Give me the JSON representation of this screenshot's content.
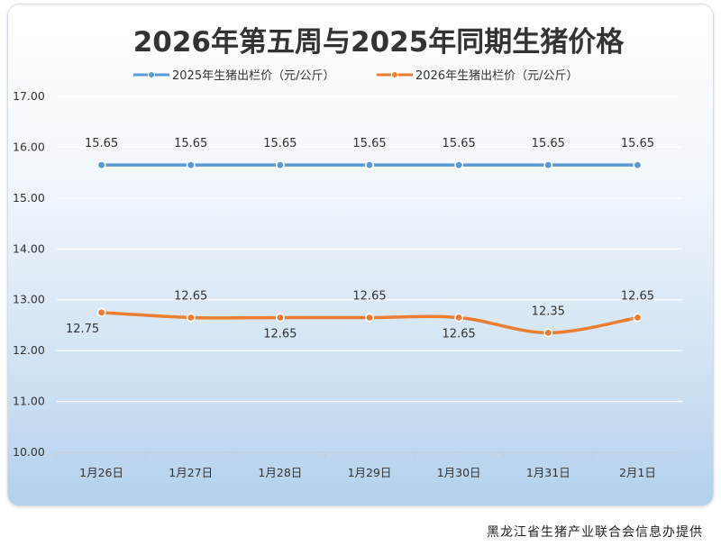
{
  "chart_data": {
    "type": "line",
    "title": "2026年第五周与2025年同期生猪价格",
    "categories": [
      "1月26日",
      "1月27日",
      "1月28日",
      "1月29日",
      "1月30日",
      "1月31日",
      "2月1日"
    ],
    "ylim": [
      10,
      17
    ],
    "yticks": [
      "10.00",
      "11.00",
      "12.00",
      "13.00",
      "14.00",
      "15.00",
      "16.00",
      "17.00"
    ],
    "grid": true,
    "legend_position": "top",
    "series": [
      {
        "name": "2025年生猪出栏价（元/公斤）",
        "values": [
          15.65,
          15.65,
          15.65,
          15.65,
          15.65,
          15.65,
          15.65
        ],
        "labels": [
          "15.65",
          "15.65",
          "15.65",
          "15.65",
          "15.65",
          "15.65",
          "15.65"
        ],
        "color": "#5b9bd5"
      },
      {
        "name": "2026年生猪出栏价（元/公斤）",
        "values": [
          12.75,
          12.65,
          12.65,
          12.65,
          12.65,
          12.35,
          12.65
        ],
        "labels": [
          "12.75",
          "12.65",
          "12.65",
          "12.65",
          "12.65",
          "12.35",
          "12.65"
        ],
        "color": "#ed7d31"
      }
    ]
  },
  "credit": "黑龙江省生猪产业联合会信息办提供"
}
